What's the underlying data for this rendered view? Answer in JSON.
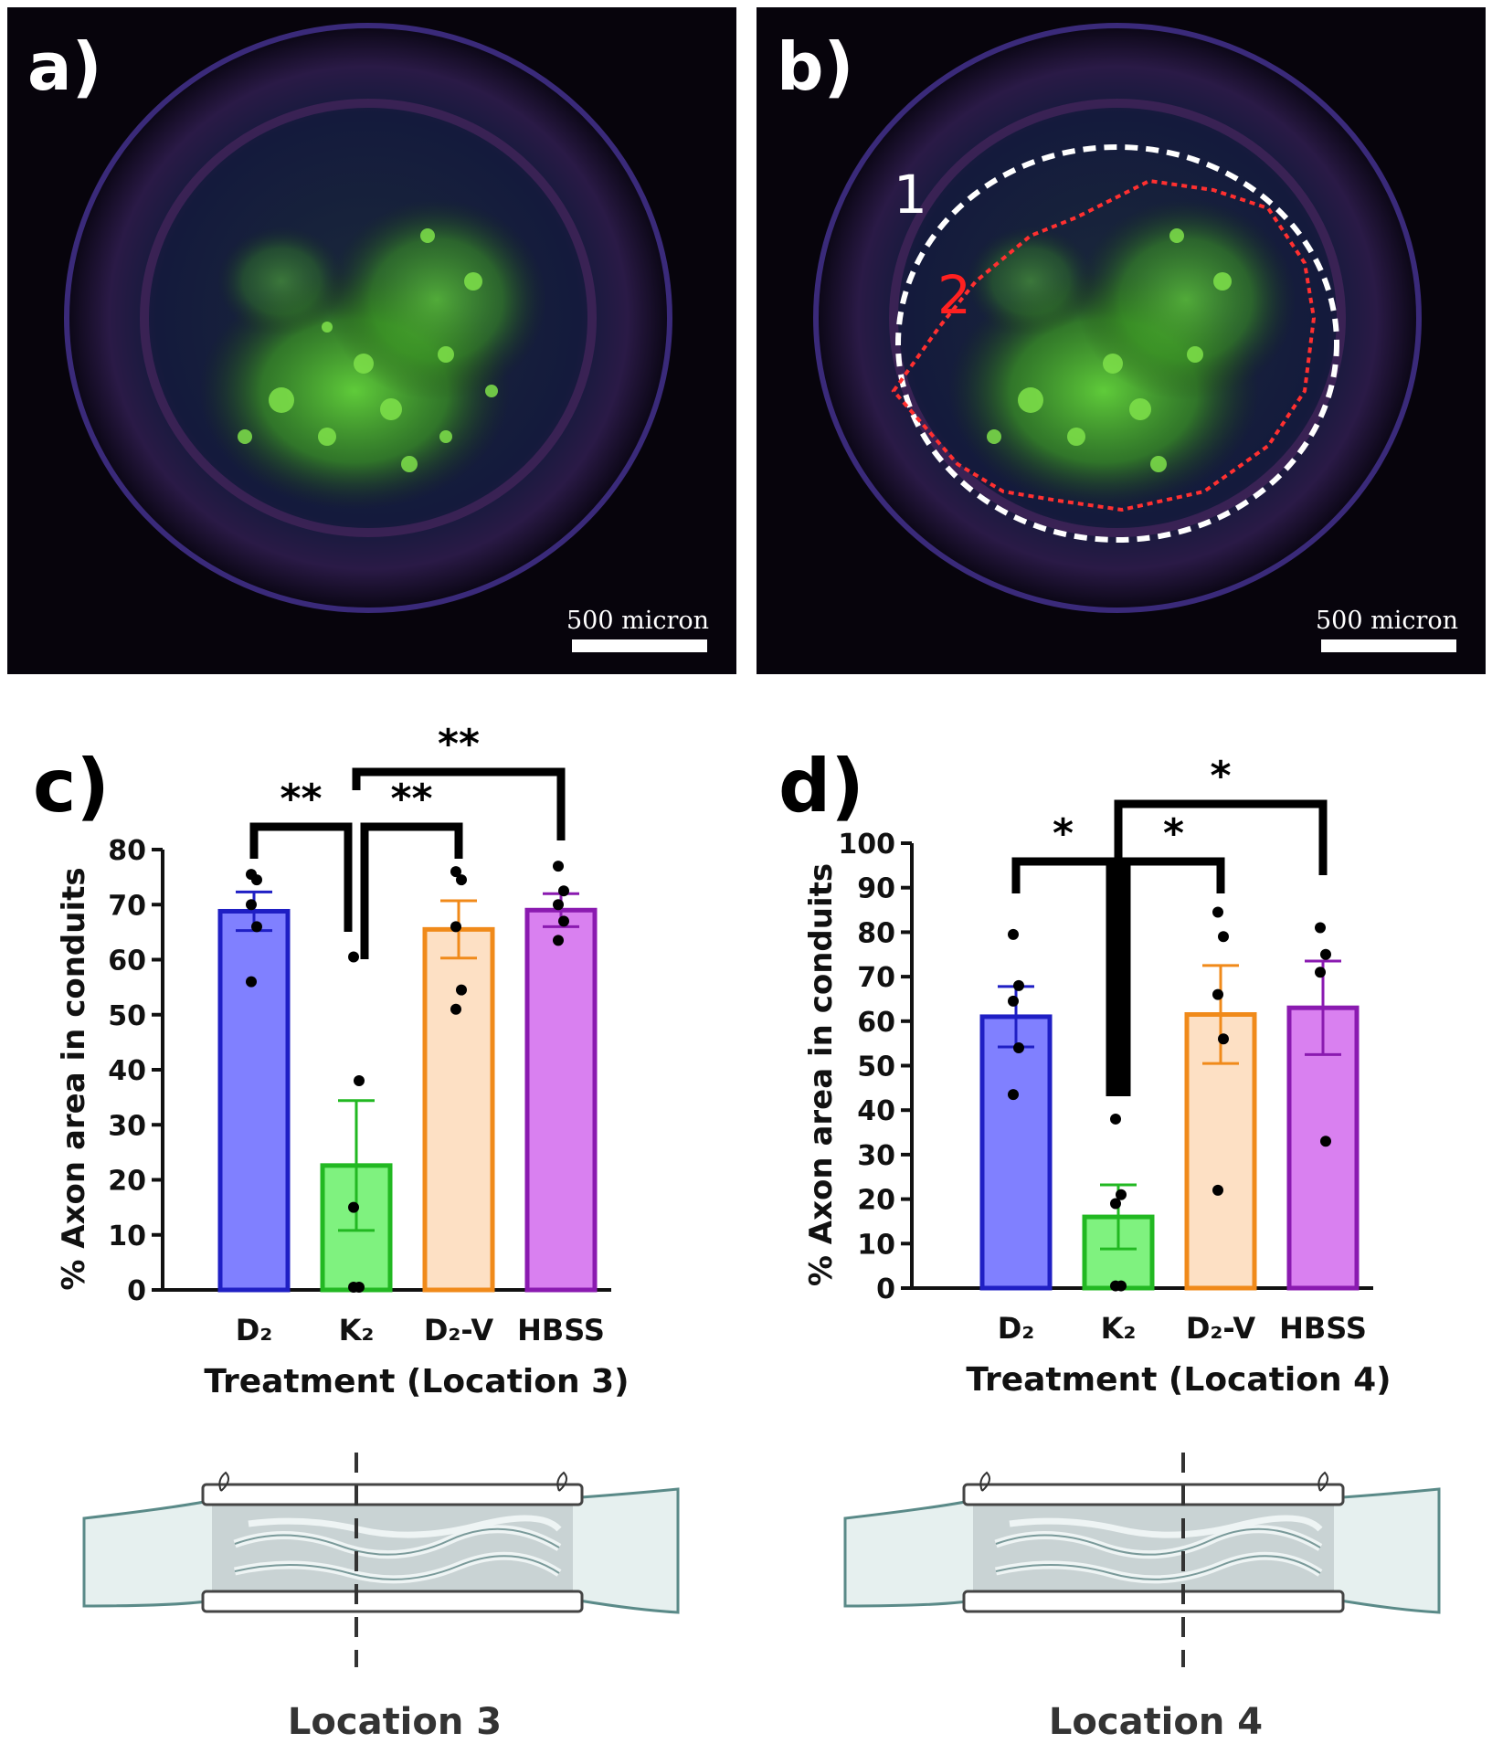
{
  "panels": {
    "a": {
      "letter": "a)",
      "scalebar": "500 micron"
    },
    "b": {
      "letter": "b)",
      "scalebar": "500 micron",
      "region_labels": [
        "1",
        "2"
      ]
    }
  },
  "colors": {
    "D2": "#1f1fc4",
    "D2_fill": "#8080ff",
    "K2": "#22b822",
    "K2_fill": "#7ff27f",
    "D2V": "#f08a1a",
    "D2V_fill": "#fde0c4",
    "HBSS": "#8a1ab0",
    "HBSS_fill": "#d980f0"
  },
  "chart_data": [
    {
      "type": "bar",
      "panel": "c)",
      "categories": [
        "D₂",
        "K₂",
        "D₂-V",
        "HBSS"
      ],
      "values": [
        68.8,
        22.6,
        65.5,
        69.0
      ],
      "sem": [
        3.5,
        11.8,
        5.2,
        3.0
      ],
      "points": [
        [
          75.5,
          74.5,
          70,
          66,
          56
        ],
        [
          60.5,
          38,
          15,
          0.5,
          0.5
        ],
        [
          76,
          74.5,
          66,
          54.5,
          51
        ],
        [
          77,
          72.5,
          70,
          67,
          63.5
        ]
      ],
      "xlabel": "Treatment (Location 3)",
      "ylabel": "% Axon area in conduits",
      "ylim": [
        0,
        80
      ],
      "yticks": [
        0,
        10,
        20,
        30,
        40,
        50,
        60,
        70,
        80
      ],
      "significance": [
        {
          "from": 0,
          "to": 1,
          "label": "**"
        },
        {
          "from": 1,
          "to": 2,
          "label": "**"
        },
        {
          "from": 1,
          "to": 3,
          "label": "**"
        }
      ]
    },
    {
      "type": "bar",
      "panel": "d)",
      "categories": [
        "D₂",
        "K₂",
        "D₂-V",
        "HBSS"
      ],
      "values": [
        61.0,
        16.0,
        61.5,
        63.0
      ],
      "sem": [
        6.8,
        7.2,
        11.0,
        10.5
      ],
      "points": [
        [
          79.5,
          68,
          64.5,
          54,
          43.5
        ],
        [
          38,
          21,
          19,
          0.5,
          0.5
        ],
        [
          84.5,
          79,
          66,
          56,
          22
        ],
        [
          81,
          75,
          71,
          33
        ]
      ],
      "xlabel": "Treatment (Location 4)",
      "ylabel": "% Axon area in conduits",
      "ylim": [
        0,
        100
      ],
      "yticks": [
        0,
        10,
        20,
        30,
        40,
        50,
        60,
        70,
        80,
        90,
        100
      ],
      "significance": [
        {
          "from": 0,
          "to": 1,
          "label": "*"
        },
        {
          "from": 1,
          "to": 2,
          "label": "*"
        },
        {
          "from": 1,
          "to": 3,
          "label": "*"
        }
      ]
    }
  ],
  "diagrams": [
    {
      "label": "Location 3"
    },
    {
      "label": "Location 4"
    }
  ]
}
